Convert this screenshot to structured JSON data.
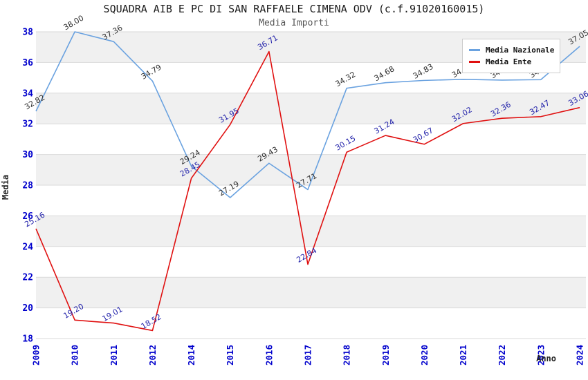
{
  "chart_data": {
    "type": "line",
    "title": "SQUADRA AIB E PC DI SAN RAFFAELE CIMENA ODV (c.f.91020160015)",
    "subtitle": "Media Importi",
    "xlabel": "Anno",
    "ylabel": "Media",
    "categories": [
      "2009",
      "2010",
      "2011",
      "2012",
      "2014",
      "2015",
      "2016",
      "2017",
      "2018",
      "2019",
      "2020",
      "2021",
      "2022",
      "2023",
      "2024"
    ],
    "y_ticks": [
      38,
      36,
      34,
      32,
      30,
      28,
      26,
      24,
      22,
      20,
      18
    ],
    "ylim": [
      18,
      38
    ],
    "grid": "horizontal gridlines with alternating shaded bands",
    "legend_position": "top-right",
    "legend": [
      "Media Nazionale",
      "Media Ente"
    ],
    "series": [
      {
        "name": "Media Nazionale",
        "color": "#6aa2e0",
        "label_color": "#303030",
        "values": [
          32.82,
          38.0,
          37.36,
          34.79,
          29.24,
          27.19,
          29.43,
          27.71,
          34.32,
          34.68,
          34.83,
          34.9,
          34.85,
          34.88,
          37.05
        ]
      },
      {
        "name": "Media Ente",
        "color": "#e01010",
        "label_color": "#2222aa",
        "values": [
          25.16,
          19.2,
          19.01,
          18.52,
          28.45,
          31.95,
          36.71,
          22.84,
          30.15,
          31.24,
          30.67,
          32.02,
          32.36,
          32.47,
          33.06
        ]
      }
    ],
    "style": {
      "axis_tick_color": "#0000cc",
      "band_color": "#f0f0f0",
      "grid_color": "#d9d9d9",
      "legend_border": "#cccccc",
      "background": "#ffffff"
    }
  }
}
